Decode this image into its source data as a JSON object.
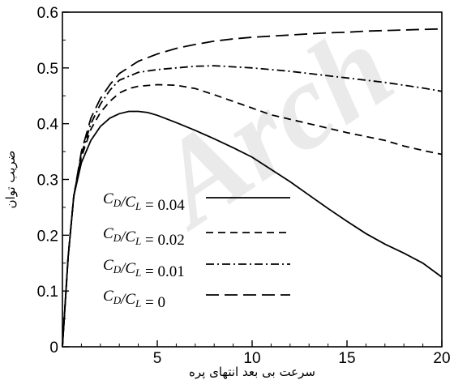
{
  "chart_data": {
    "type": "line",
    "title": "",
    "xlabel": "سرعت بی بعد انتهای پره",
    "ylabel": "ضریب توان",
    "xlim": [
      0,
      20
    ],
    "ylim": [
      0,
      0.6
    ],
    "xticks": [
      5,
      10,
      15,
      20
    ],
    "yticks": [
      0,
      0.1,
      0.2,
      0.3,
      0.4,
      0.5,
      0.6
    ],
    "xtick_labels": [
      "5",
      "10",
      "15",
      "20"
    ],
    "ytick_labels": [
      "0",
      "0.1",
      "0.2",
      "0.3",
      "0.4",
      "0.5",
      "0.6"
    ],
    "grid": false,
    "legend_position": "lower-left",
    "watermark": "Arch",
    "series": [
      {
        "name": "C_D/C_L = 0.04",
        "dash": "solid",
        "points": [
          [
            0,
            0
          ],
          [
            0.3,
            0.16
          ],
          [
            0.6,
            0.27
          ],
          [
            1,
            0.33
          ],
          [
            1.5,
            0.37
          ],
          [
            2,
            0.395
          ],
          [
            2.5,
            0.41
          ],
          [
            3,
            0.418
          ],
          [
            3.5,
            0.422
          ],
          [
            4,
            0.422
          ],
          [
            4.5,
            0.42
          ],
          [
            5,
            0.415
          ],
          [
            6,
            0.402
          ],
          [
            7,
            0.388
          ],
          [
            8,
            0.373
          ],
          [
            9,
            0.357
          ],
          [
            10,
            0.34
          ],
          [
            11,
            0.318
          ],
          [
            12,
            0.296
          ],
          [
            13,
            0.272
          ],
          [
            14,
            0.248
          ],
          [
            15,
            0.225
          ],
          [
            16,
            0.203
          ],
          [
            17,
            0.184
          ],
          [
            18,
            0.168
          ],
          [
            19,
            0.15
          ],
          [
            20,
            0.125
          ]
        ]
      },
      {
        "name": "C_D/C_L = 0.02",
        "dash": "dashed",
        "points": [
          [
            0,
            0
          ],
          [
            0.3,
            0.16
          ],
          [
            0.6,
            0.27
          ],
          [
            1,
            0.34
          ],
          [
            1.5,
            0.39
          ],
          [
            2,
            0.42
          ],
          [
            2.5,
            0.44
          ],
          [
            3,
            0.455
          ],
          [
            3.5,
            0.463
          ],
          [
            4,
            0.467
          ],
          [
            5,
            0.47
          ],
          [
            6,
            0.469
          ],
          [
            7,
            0.463
          ],
          [
            8,
            0.452
          ],
          [
            9,
            0.44
          ],
          [
            10,
            0.428
          ],
          [
            11,
            0.416
          ],
          [
            12,
            0.408
          ],
          [
            13,
            0.4
          ],
          [
            14,
            0.392
          ],
          [
            15,
            0.384
          ],
          [
            16,
            0.377
          ],
          [
            17,
            0.37
          ],
          [
            18,
            0.36
          ],
          [
            19,
            0.352
          ],
          [
            20,
            0.345
          ]
        ]
      },
      {
        "name": "C_D/C_L = 0.01",
        "dash": "dash-dot",
        "points": [
          [
            0,
            0
          ],
          [
            0.3,
            0.16
          ],
          [
            0.6,
            0.27
          ],
          [
            1,
            0.345
          ],
          [
            1.5,
            0.4
          ],
          [
            2,
            0.435
          ],
          [
            2.5,
            0.46
          ],
          [
            3,
            0.478
          ],
          [
            4,
            0.492
          ],
          [
            5,
            0.497
          ],
          [
            6,
            0.5
          ],
          [
            7,
            0.503
          ],
          [
            8,
            0.504
          ],
          [
            9,
            0.502
          ],
          [
            10,
            0.5
          ],
          [
            11,
            0.497
          ],
          [
            12,
            0.494
          ],
          [
            13,
            0.49
          ],
          [
            14,
            0.486
          ],
          [
            15,
            0.482
          ],
          [
            16,
            0.478
          ],
          [
            17,
            0.474
          ],
          [
            18,
            0.469
          ],
          [
            19,
            0.464
          ],
          [
            20,
            0.458
          ]
        ]
      },
      {
        "name": "C_D/C_L = 0",
        "dash": "long-dash",
        "points": [
          [
            0,
            0
          ],
          [
            0.3,
            0.16
          ],
          [
            0.6,
            0.27
          ],
          [
            1,
            0.35
          ],
          [
            1.5,
            0.41
          ],
          [
            2,
            0.445
          ],
          [
            2.5,
            0.47
          ],
          [
            3,
            0.49
          ],
          [
            4,
            0.512
          ],
          [
            5,
            0.525
          ],
          [
            6,
            0.535
          ],
          [
            7,
            0.542
          ],
          [
            8,
            0.548
          ],
          [
            9,
            0.552
          ],
          [
            10,
            0.555
          ],
          [
            11,
            0.557
          ],
          [
            12,
            0.559
          ],
          [
            13,
            0.561
          ],
          [
            14,
            0.563
          ],
          [
            15,
            0.564
          ],
          [
            16,
            0.566
          ],
          [
            17,
            0.567
          ],
          [
            18,
            0.568
          ],
          [
            19,
            0.569
          ],
          [
            20,
            0.57
          ]
        ]
      }
    ]
  },
  "legend": {
    "entries": [
      {
        "label_main": "C",
        "label_sub": "D",
        "label_div": "/C",
        "label_sub2": "L",
        "label_value": " = 0.04"
      },
      {
        "label_main": "C",
        "label_sub": "D",
        "label_div": "/C",
        "label_sub2": "L",
        "label_value": " = 0.02"
      },
      {
        "label_main": "C",
        "label_sub": "D",
        "label_div": "/C",
        "label_sub2": "L",
        "label_value": " = 0.01"
      },
      {
        "label_main": "C",
        "label_sub": "D",
        "label_div": "/C",
        "label_sub2": "L",
        "label_value": " = 0"
      }
    ]
  }
}
